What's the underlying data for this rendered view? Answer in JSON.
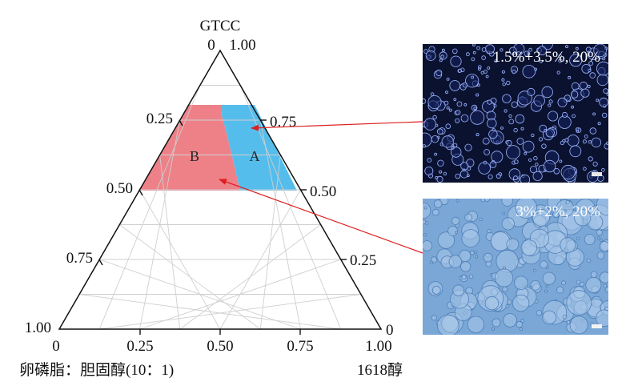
{
  "diagram": {
    "type": "ternary-phase-diagram",
    "apex_top": "GTCC",
    "bottom_left_label": "卵磷脂：胆固醇(10：1)",
    "bottom_right_label": "1618醇",
    "ticks": {
      "bottom": [
        "0",
        "0.25",
        "0.50",
        "0.75",
        "1.00"
      ],
      "left": [
        "0",
        "0.25",
        "0.50",
        "0.75",
        "1.00"
      ],
      "right": [
        "1.00",
        "0.75",
        "0.50",
        "0.25",
        "0"
      ]
    },
    "regions": [
      {
        "name": "A",
        "color": "#55bdec"
      },
      {
        "name": "B",
        "color": "#ee8188"
      }
    ],
    "arrow_color": "#dd1f1f"
  },
  "micrographs": [
    {
      "caption": "1.5%+3.5%, 20%",
      "tone": "dark-blue"
    },
    {
      "caption": "3%+2%, 20%",
      "tone": "light-blue"
    }
  ]
}
